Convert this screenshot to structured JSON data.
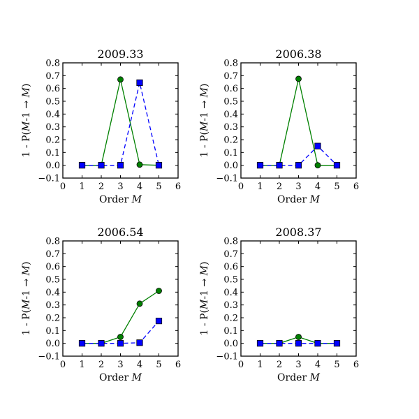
{
  "chart_data": [
    {
      "type": "line",
      "title": "2009.33",
      "xlabel": {
        "prefix": "Order ",
        "var": "M"
      },
      "ylabel": {
        "prefix": "1 - P(",
        "var1": "M",
        "mid": "-1 → ",
        "var2": "M",
        "suffix": ")"
      },
      "xlim": [
        0,
        6
      ],
      "ylim": [
        -0.1,
        0.8
      ],
      "xticks": [
        0,
        1,
        2,
        3,
        4,
        5,
        6
      ],
      "yticks": [
        -0.1,
        0.0,
        0.1,
        0.2,
        0.3,
        0.4,
        0.5,
        0.6,
        0.7,
        0.8
      ],
      "x": [
        1,
        2,
        3,
        4,
        5
      ],
      "series": [
        {
          "values": [
            0.0,
            0.0,
            0.67,
            0.005,
            0.0
          ],
          "color": "#008000",
          "marker": "circle",
          "linestyle": "solid"
        },
        {
          "values": [
            0.0,
            0.0,
            0.0,
            0.645,
            0.0
          ],
          "color": "#0000ff",
          "marker": "square",
          "linestyle": "dashed"
        }
      ]
    },
    {
      "type": "line",
      "title": "2006.38",
      "xlabel": {
        "prefix": "Order ",
        "var": "M"
      },
      "ylabel": {
        "prefix": "1 - P(",
        "var1": "M",
        "mid": "-1 → ",
        "var2": "M",
        "suffix": ")"
      },
      "xlim": [
        0,
        6
      ],
      "ylim": [
        -0.1,
        0.8
      ],
      "xticks": [
        0,
        1,
        2,
        3,
        4,
        5,
        6
      ],
      "yticks": [
        -0.1,
        0.0,
        0.1,
        0.2,
        0.3,
        0.4,
        0.5,
        0.6,
        0.7,
        0.8
      ],
      "x": [
        1,
        2,
        3,
        4,
        5
      ],
      "series": [
        {
          "values": [
            0.0,
            0.0,
            0.675,
            0.0,
            0.0
          ],
          "color": "#008000",
          "marker": "circle",
          "linestyle": "solid"
        },
        {
          "values": [
            0.0,
            0.0,
            0.0,
            0.15,
            0.0
          ],
          "color": "#0000ff",
          "marker": "square",
          "linestyle": "dashed"
        }
      ]
    },
    {
      "type": "line",
      "title": "2006.54",
      "xlabel": {
        "prefix": "Order ",
        "var": "M"
      },
      "ylabel": {
        "prefix": "1 - P(",
        "var1": "M",
        "mid": "-1 → ",
        "var2": "M",
        "suffix": ")"
      },
      "xlim": [
        0,
        6
      ],
      "ylim": [
        -0.1,
        0.8
      ],
      "xticks": [
        0,
        1,
        2,
        3,
        4,
        5,
        6
      ],
      "yticks": [
        -0.1,
        0.0,
        0.1,
        0.2,
        0.3,
        0.4,
        0.5,
        0.6,
        0.7,
        0.8
      ],
      "x": [
        1,
        2,
        3,
        4,
        5
      ],
      "series": [
        {
          "values": [
            0.0,
            0.0,
            0.05,
            0.31,
            0.41
          ],
          "color": "#008000",
          "marker": "circle",
          "linestyle": "solid"
        },
        {
          "values": [
            0.0,
            0.0,
            0.0,
            0.005,
            0.175
          ],
          "color": "#0000ff",
          "marker": "square",
          "linestyle": "dashed"
        }
      ]
    },
    {
      "type": "line",
      "title": "2008.37",
      "xlabel": {
        "prefix": "Order ",
        "var": "M"
      },
      "ylabel": {
        "prefix": "1 - P(",
        "var1": "M",
        "mid": "-1 → ",
        "var2": "M",
        "suffix": ")"
      },
      "xlim": [
        0,
        6
      ],
      "ylim": [
        -0.1,
        0.8
      ],
      "xticks": [
        0,
        1,
        2,
        3,
        4,
        5,
        6
      ],
      "yticks": [
        -0.1,
        0.0,
        0.1,
        0.2,
        0.3,
        0.4,
        0.5,
        0.6,
        0.7,
        0.8
      ],
      "x": [
        1,
        2,
        3,
        4,
        5
      ],
      "series": [
        {
          "values": [
            0.0,
            0.0,
            0.05,
            0.0,
            0.0
          ],
          "color": "#008000",
          "marker": "circle",
          "linestyle": "solid"
        },
        {
          "values": [
            0.0,
            0.0,
            0.0,
            0.0,
            0.0
          ],
          "color": "#0000ff",
          "marker": "square",
          "linestyle": "dashed"
        }
      ]
    }
  ]
}
